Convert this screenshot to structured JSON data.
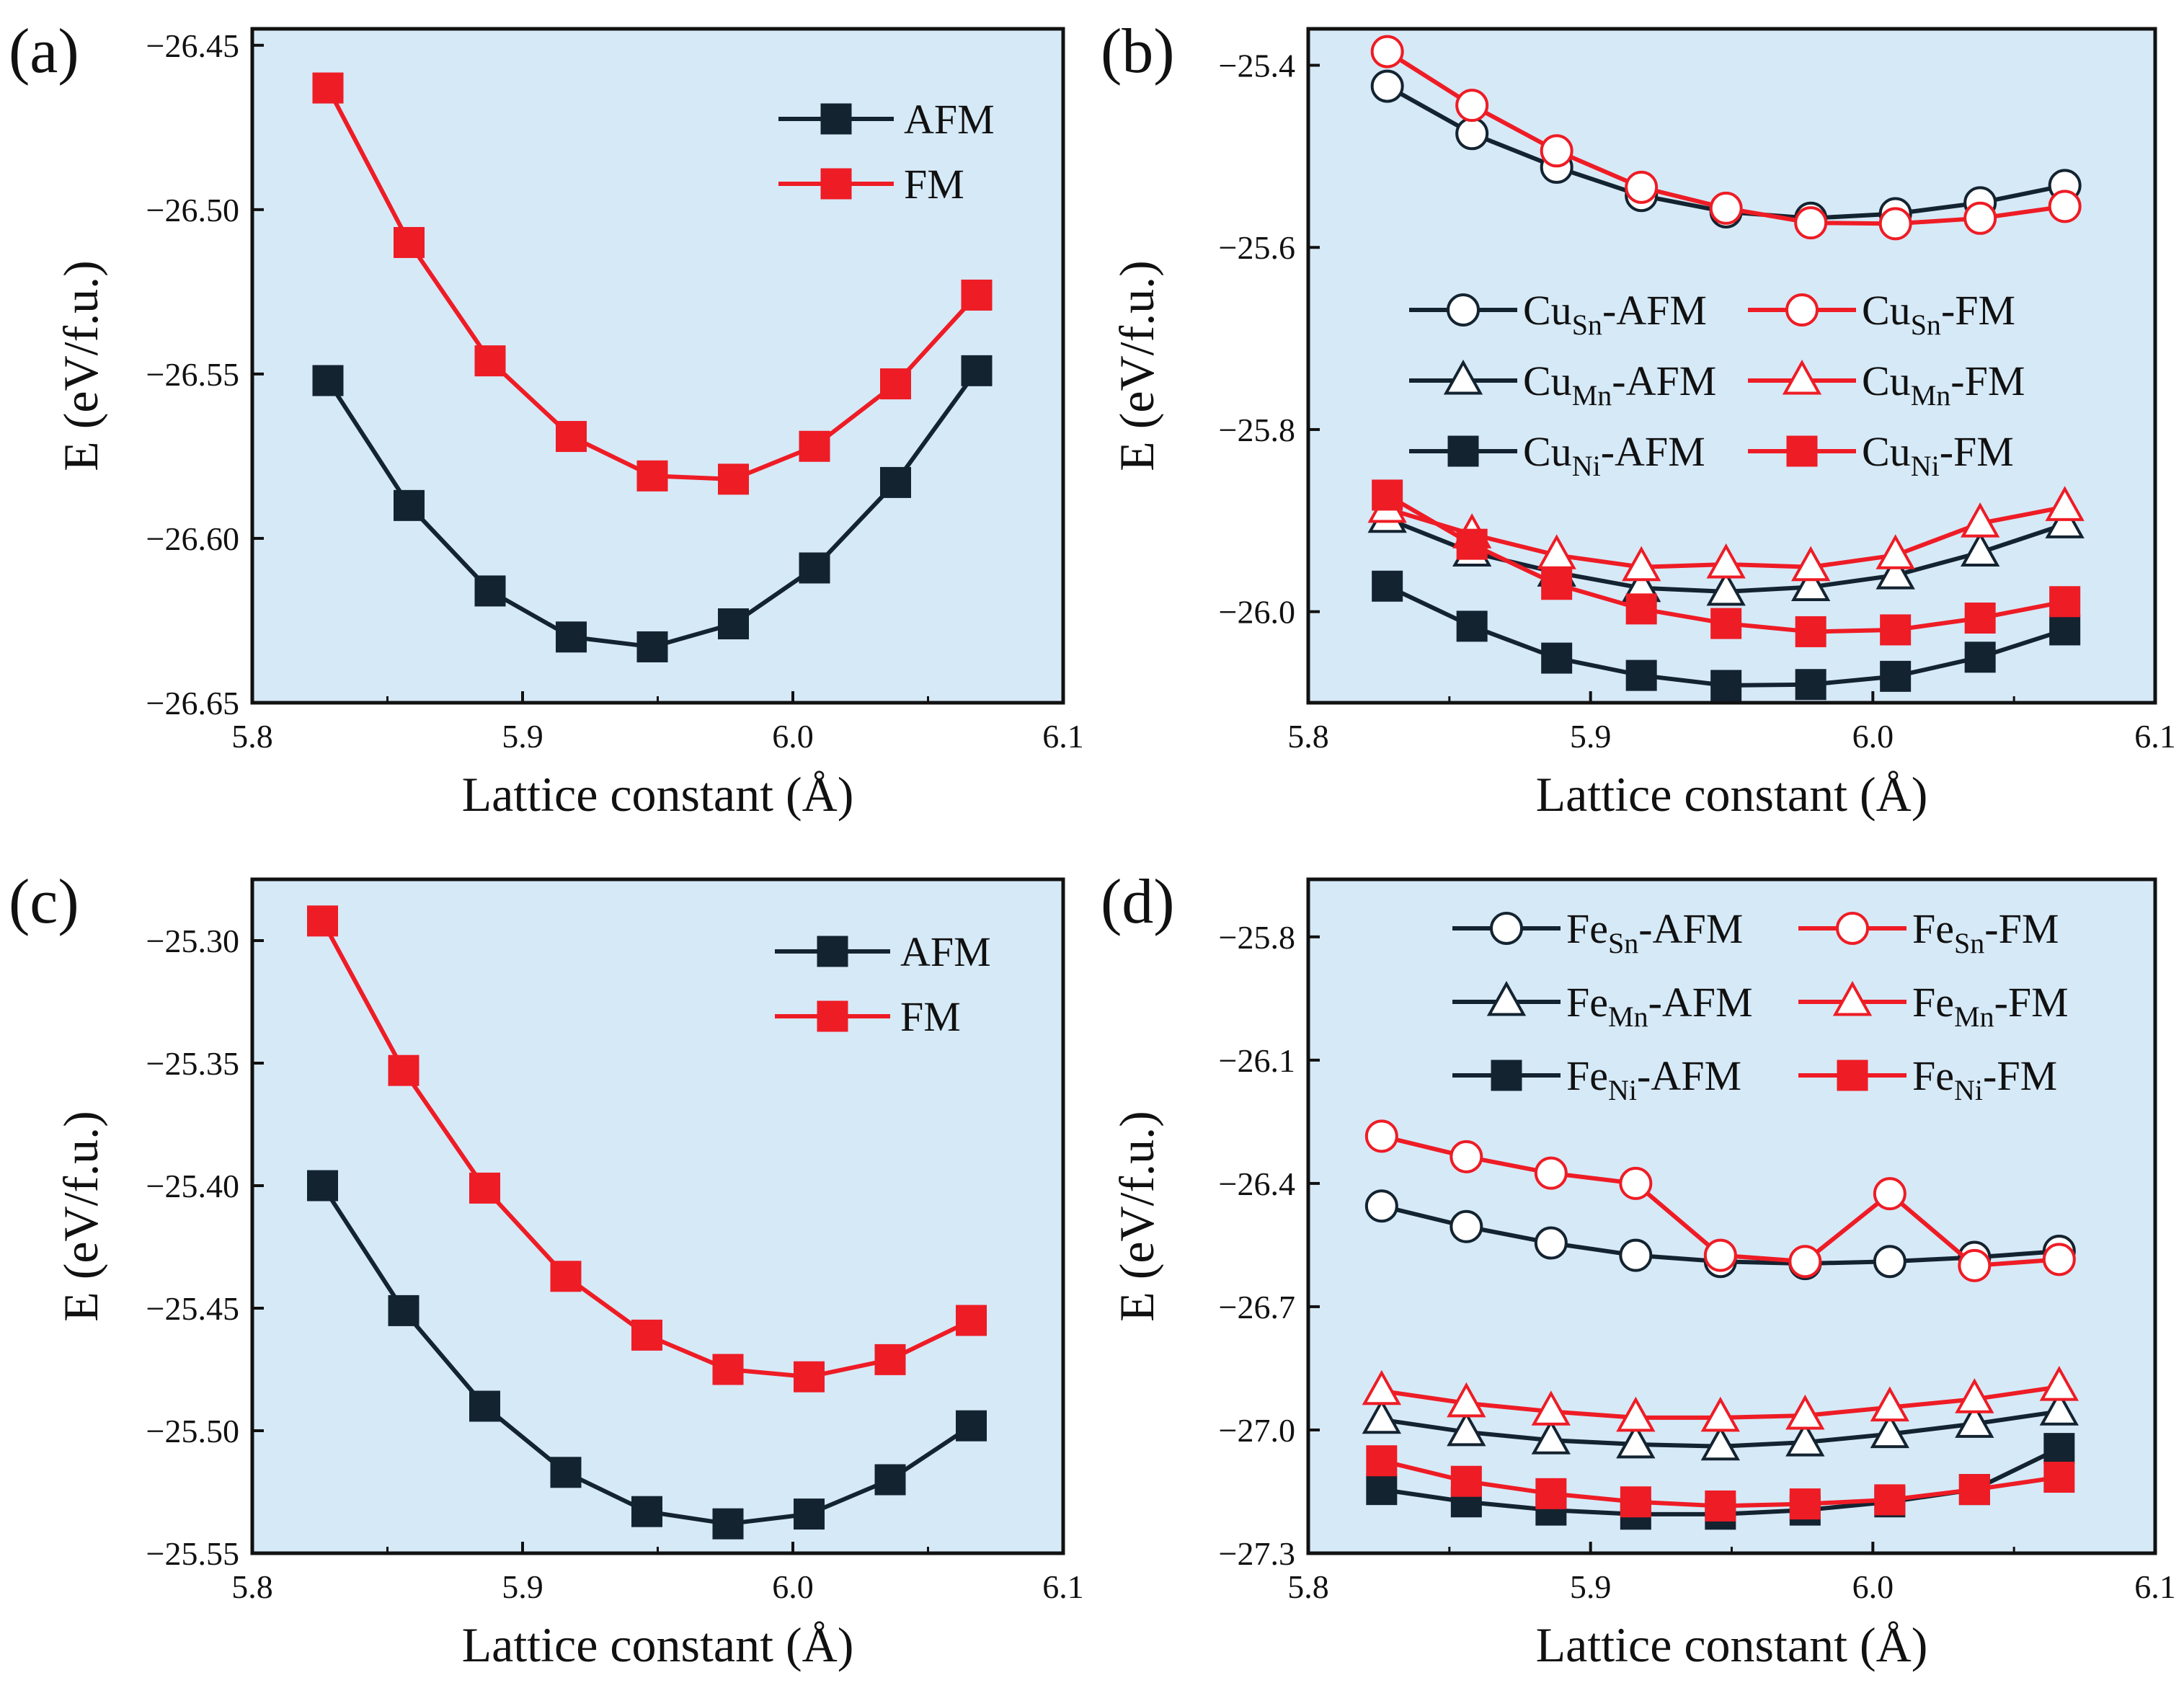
{
  "colors": {
    "afm": "#142330",
    "fm": "#ee1c25",
    "plot_bg": "#d6e9f7",
    "frame": "#111111"
  },
  "chart_data": [
    {
      "id": "a",
      "panel_label": "(a)",
      "type": "line",
      "xlabel": "Lattice constant (Å)",
      "ylabel": "E (eV/f.u.)",
      "xlim": [
        5.8,
        6.1
      ],
      "ylim": [
        -26.65,
        -26.445
      ],
      "xticks": [
        5.8,
        5.9,
        6.0,
        6.1
      ],
      "xtick_labels": [
        "5.8",
        "5.9",
        "6.0",
        "6.1"
      ],
      "yticks": [
        -26.45,
        -26.5,
        -26.55,
        -26.6,
        -26.65
      ],
      "ytick_labels": [
        "−26.45",
        "−26.50",
        "−26.55",
        "−26.60",
        "−26.65"
      ],
      "legend_position": "top-right",
      "x": [
        5.828,
        5.858,
        5.888,
        5.918,
        5.948,
        5.978,
        6.008,
        6.038,
        6.068
      ],
      "series": [
        {
          "name": "AFM",
          "marker": "square",
          "filled": true,
          "color": "afm",
          "values": [
            -26.552,
            -26.59,
            -26.616,
            -26.63,
            -26.633,
            -26.626,
            -26.609,
            -26.583,
            -26.549
          ]
        },
        {
          "name": "FM",
          "marker": "square",
          "filled": true,
          "color": "fm",
          "values": [
            -26.463,
            -26.51,
            -26.546,
            -26.569,
            -26.581,
            -26.582,
            -26.572,
            -26.553,
            -26.526
          ]
        }
      ]
    },
    {
      "id": "b",
      "panel_label": "(b)",
      "type": "line",
      "xlabel": "Lattice constant (Å)",
      "ylabel": "E (eV/f.u.)",
      "xlim": [
        5.8,
        6.1
      ],
      "ylim": [
        -26.1,
        -25.36
      ],
      "xticks": [
        5.8,
        5.9,
        6.0,
        6.1
      ],
      "xtick_labels": [
        "5.8",
        "5.9",
        "6.0",
        "6.1"
      ],
      "yticks": [
        -25.4,
        -25.6,
        -25.8,
        -26.0
      ],
      "ytick_labels": [
        "−25.4",
        "−25.6",
        "−25.8",
        "−26.0"
      ],
      "legend_position": "middle",
      "x": [
        5.828,
        5.858,
        5.888,
        5.918,
        5.948,
        5.978,
        6.008,
        6.038,
        6.068
      ],
      "series": [
        {
          "name": "Cu",
          "sub": "Sn",
          "suffix": "-AFM",
          "marker": "circle",
          "filled": false,
          "color": "afm",
          "values": [
            -25.423,
            -25.475,
            -25.512,
            -25.543,
            -25.561,
            -25.568,
            -25.563,
            -25.551,
            -25.532
          ]
        },
        {
          "name": "Cu",
          "sub": "Sn",
          "suffix": "-FM",
          "marker": "circle",
          "filled": false,
          "color": "fm",
          "values": [
            -25.385,
            -25.444,
            -25.494,
            -25.534,
            -25.557,
            -25.573,
            -25.574,
            -25.568,
            -25.555
          ]
        },
        {
          "name": "Cu",
          "sub": "Mn",
          "suffix": "-AFM",
          "marker": "triangle",
          "filled": false,
          "color": "afm",
          "values": [
            -25.898,
            -25.935,
            -25.957,
            -25.974,
            -25.978,
            -25.973,
            -25.96,
            -25.935,
            -25.904
          ]
        },
        {
          "name": "Cu",
          "sub": "Mn",
          "suffix": "-FM",
          "marker": "triangle",
          "filled": false,
          "color": "fm",
          "values": [
            -25.887,
            -25.915,
            -25.938,
            -25.951,
            -25.948,
            -25.951,
            -25.938,
            -25.903,
            -25.885
          ]
        },
        {
          "name": "Cu",
          "sub": "Ni",
          "suffix": "-AFM",
          "marker": "square",
          "filled": true,
          "color": "afm",
          "values": [
            -25.972,
            -26.016,
            -26.051,
            -26.07,
            -26.081,
            -26.08,
            -26.071,
            -26.05,
            -26.02
          ]
        },
        {
          "name": "Cu",
          "sub": "Ni",
          "suffix": "-FM",
          "marker": "square",
          "filled": true,
          "color": "fm",
          "values": [
            -25.872,
            -25.926,
            -25.97,
            -25.997,
            -26.013,
            -26.022,
            -26.02,
            -26.007,
            -25.989
          ]
        }
      ]
    },
    {
      "id": "c",
      "panel_label": "(c)",
      "type": "line",
      "xlabel": "Lattice constant (Å)",
      "ylabel": "E (eV/f.u.)",
      "xlim": [
        5.8,
        6.1
      ],
      "ylim": [
        -25.55,
        -25.275
      ],
      "xticks": [
        5.8,
        5.9,
        6.0,
        6.1
      ],
      "xtick_labels": [
        "5.8",
        "5.9",
        "6.0",
        "6.1"
      ],
      "yticks": [
        -25.3,
        -25.35,
        -25.4,
        -25.45,
        -25.5,
        -25.55
      ],
      "ytick_labels": [
        "−25.30",
        "−25.35",
        "−25.40",
        "−25.45",
        "−25.50",
        "−25.55"
      ],
      "legend_position": "top-right",
      "x": [
        5.826,
        5.856,
        5.886,
        5.916,
        5.946,
        5.976,
        6.006,
        6.036,
        6.066
      ],
      "series": [
        {
          "name": "AFM",
          "marker": "square",
          "filled": true,
          "color": "afm",
          "values": [
            -25.4,
            -25.451,
            -25.49,
            -25.517,
            -25.533,
            -25.538,
            -25.534,
            -25.52,
            -25.498
          ]
        },
        {
          "name": "FM",
          "marker": "square",
          "filled": true,
          "color": "fm",
          "values": [
            -25.292,
            -25.353,
            -25.401,
            -25.437,
            -25.461,
            -25.475,
            -25.478,
            -25.471,
            -25.455
          ]
        }
      ]
    },
    {
      "id": "d",
      "panel_label": "(d)",
      "type": "line",
      "xlabel": "Lattice constant (Å)",
      "ylabel": "E (eV/f.u.)",
      "xlim": [
        5.8,
        6.1
      ],
      "ylim": [
        -27.3,
        -25.66
      ],
      "xticks": [
        5.8,
        5.9,
        6.0,
        6.1
      ],
      "xtick_labels": [
        "5.8",
        "5.9",
        "6.0",
        "6.1"
      ],
      "yticks": [
        -25.8,
        -26.1,
        -26.4,
        -26.7,
        -27.0,
        -27.3
      ],
      "ytick_labels": [
        "−25.8",
        "−26.1",
        "−26.4",
        "−26.7",
        "−27.0",
        "−27.3"
      ],
      "legend_position": "top",
      "x": [
        5.826,
        5.856,
        5.886,
        5.916,
        5.946,
        5.976,
        6.006,
        6.036,
        6.066
      ],
      "series": [
        {
          "name": "Fe",
          "sub": "Sn",
          "suffix": "-AFM",
          "marker": "circle",
          "filled": false,
          "color": "afm",
          "values": [
            -26.455,
            -26.505,
            -26.545,
            -26.575,
            -26.59,
            -26.595,
            -26.59,
            -26.58,
            -26.565
          ]
        },
        {
          "name": "Fe",
          "sub": "Sn",
          "suffix": "-FM",
          "marker": "circle",
          "filled": false,
          "color": "fm",
          "values": [
            -26.285,
            -26.335,
            -26.375,
            -26.4,
            -26.575,
            -26.59,
            -26.425,
            -26.6,
            -26.585
          ]
        },
        {
          "name": "Fe",
          "sub": "Mn",
          "suffix": "-AFM",
          "marker": "triangle",
          "filled": false,
          "color": "afm",
          "values": [
            -26.975,
            -27.005,
            -27.025,
            -27.035,
            -27.04,
            -27.03,
            -27.01,
            -26.985,
            -26.955
          ]
        },
        {
          "name": "Fe",
          "sub": "Mn",
          "suffix": "-FM",
          "marker": "triangle",
          "filled": false,
          "color": "fm",
          "values": [
            -26.905,
            -26.935,
            -26.955,
            -26.97,
            -26.97,
            -26.965,
            -26.945,
            -26.925,
            -26.895
          ]
        },
        {
          "name": "Fe",
          "sub": "Ni",
          "suffix": "-AFM",
          "marker": "square",
          "filled": true,
          "color": "afm",
          "values": [
            -27.145,
            -27.175,
            -27.195,
            -27.205,
            -27.205,
            -27.195,
            -27.175,
            -27.145,
            -27.045
          ]
        },
        {
          "name": "Fe",
          "sub": "Ni",
          "suffix": "-FM",
          "marker": "square",
          "filled": true,
          "color": "fm",
          "values": [
            -27.075,
            -27.125,
            -27.155,
            -27.175,
            -27.185,
            -27.18,
            -27.17,
            -27.145,
            -27.115
          ]
        }
      ]
    }
  ]
}
